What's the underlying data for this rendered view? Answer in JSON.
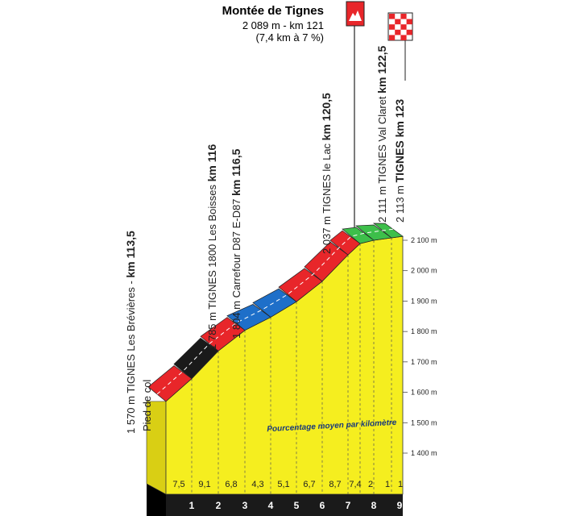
{
  "chart_data": {
    "type": "area",
    "title": "Montée de Tignes",
    "subtitle_line1": "2 089 m - km 121",
    "subtitle_line2": "(7,4 km à 7 %)",
    "avg_label": "Pourcentage moyen par kilomètre",
    "ylim": [
      1400,
      2100
    ],
    "y_ticks": [
      "1 400 m",
      "1 500 m",
      "1 600 m",
      "1 700 m",
      "1 800 m",
      "1 900 m",
      "2 000 m",
      "2 100 m"
    ],
    "y_tick_values": [
      1400,
      1500,
      1600,
      1700,
      1800,
      1900,
      2000,
      2100
    ],
    "x_ticks": [
      "1",
      "2",
      "3",
      "4",
      "5",
      "6",
      "7",
      "8",
      "9"
    ],
    "segments": [
      {
        "gradient": "7,5",
        "color": "#e8262a",
        "start_elev": 1570,
        "end_elev": 1645
      },
      {
        "gradient": "9,1",
        "color": "#1a1a1a",
        "start_elev": 1645,
        "end_elev": 1736
      },
      {
        "gradient": "6,8",
        "color": "#e8262a",
        "start_elev": 1736,
        "end_elev": 1804
      },
      {
        "gradient": "4,3",
        "color": "#1e6fc9",
        "start_elev": 1804,
        "end_elev": 1847
      },
      {
        "gradient": "5,1",
        "color": "#1e6fc9",
        "start_elev": 1847,
        "end_elev": 1898
      },
      {
        "gradient": "6,7",
        "color": "#e8262a",
        "start_elev": 1898,
        "end_elev": 1965
      },
      {
        "gradient": "8,7",
        "color": "#e8262a",
        "start_elev": 1965,
        "end_elev": 2052
      },
      {
        "gradient": "7,4",
        "color": "#e8262a",
        "start_elev": 2052,
        "end_elev": 2089
      },
      {
        "gradient": "2",
        "color": "#3dbf4a",
        "start_elev": 2089,
        "end_elev": 2100
      },
      {
        "gradient": "1",
        "color": "#3dbf4a",
        "start_elev": 2100,
        "end_elev": 2108
      },
      {
        "gradient": "1",
        "color": "#3dbf4a",
        "start_elev": 2108,
        "end_elev": 2113
      }
    ],
    "waypoints": [
      {
        "id": "breviere",
        "lines": [
          "1 570 m TIGNES Les Brévières - ",
          "km 113,5"
        ],
        "extra": "Pied de col"
      },
      {
        "id": "boisses",
        "lines": [
          "1 785 m TIGNES 1800 Les Boisses ",
          "km 116"
        ]
      },
      {
        "id": "carrefour",
        "lines": [
          "1 804 m Carrefour D87 E-D87 ",
          "km 116,5"
        ]
      },
      {
        "id": "lac",
        "lines": [
          "2 037 m TIGNES le Lac ",
          "km 120,5"
        ]
      },
      {
        "id": "valclaret",
        "lines": [
          "2 111 m TIGNES Val Claret ",
          "km 122,5"
        ]
      },
      {
        "id": "tignes",
        "lines": [
          "2 113 m ",
          "TIGNES km 123"
        ]
      }
    ],
    "colors": {
      "fill": "#f5ee1f",
      "base": "#1a1a1a",
      "face_dark": "#d9cf14",
      "gridline": "#555555"
    }
  }
}
